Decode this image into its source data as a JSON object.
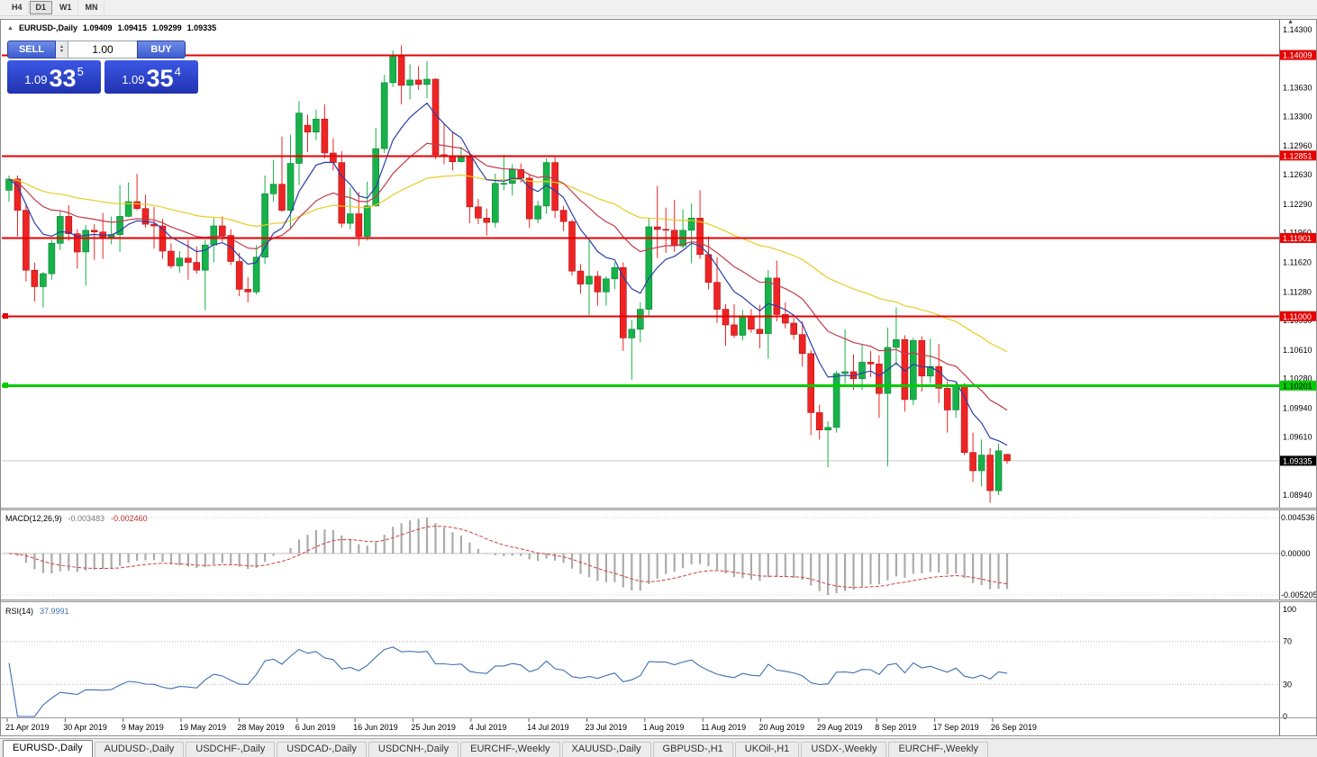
{
  "toolbar": {
    "timeframes": [
      {
        "label": "H4",
        "active": false
      },
      {
        "label": "D1",
        "active": true
      },
      {
        "label": "W1",
        "active": false
      },
      {
        "label": "MN",
        "active": false
      }
    ]
  },
  "chart_header": {
    "collapse_icon": "▲",
    "symbol": "EURUSD-,Daily",
    "open": "1.09409",
    "high": "1.09415",
    "low": "1.09299",
    "close": "1.09335"
  },
  "trade_panel": {
    "sell_label": "SELL",
    "buy_label": "BUY",
    "volume": "1.00",
    "sell_price": {
      "base": "1.09",
      "pips": "33",
      "pipette": "5"
    },
    "buy_price": {
      "base": "1.09",
      "pips": "35",
      "pipette": "4"
    }
  },
  "indicators": {
    "macd": {
      "label": "MACD(12,26,9)",
      "value_main": "-0.003483",
      "value_signal": "-0.002460",
      "axis_labels": [
        "0.004536",
        "0.00000",
        "-0.005205"
      ],
      "fast": 12,
      "slow": 26,
      "signal": 9,
      "histogram_color": "#ababab",
      "signal_color": "#d04040"
    },
    "rsi": {
      "label": "RSI(14)",
      "value": "37.9991",
      "axis_labels": [
        "100",
        "70",
        "30",
        "0"
      ],
      "levels": [
        70,
        30
      ],
      "period": 14,
      "line_color": "#3e6fb0"
    }
  },
  "price_axis": {
    "grid_labels": [
      "1.14300",
      "1.13630",
      "1.13300",
      "1.12960",
      "1.12630",
      "1.12290",
      "1.11960",
      "1.11620",
      "1.11280",
      "1.10950",
      "1.10610",
      "1.10280",
      "1.09940",
      "1.09610",
      "1.08940"
    ]
  },
  "hlines": [
    {
      "price": 1.14009,
      "label": "1.14009",
      "color": "#E60000",
      "width": 2,
      "text_color": "#ffffff",
      "handle": false
    },
    {
      "price": 1.12851,
      "label": "1.12851",
      "color": "#E60000",
      "width": 2,
      "text_color": "#ffffff",
      "handle": false
    },
    {
      "price": 1.11901,
      "label": "1.11901",
      "color": "#E60000",
      "width": 2,
      "text_color": "#ffffff",
      "handle": false
    },
    {
      "price": 1.11,
      "label": "1.11000",
      "color": "#E60000",
      "width": 2,
      "text_color": "#ffffff",
      "handle": true
    },
    {
      "price": 1.10201,
      "label": "1.10201",
      "color": "#00CC00",
      "width": 3,
      "text_color": "#000000",
      "handle": true
    }
  ],
  "bid": {
    "price": 1.09335,
    "label": "1.09335",
    "color": "#000000",
    "text_color": "#ffffff"
  },
  "chart_data": {
    "type": "candlestick",
    "symbol": "EURUSD-",
    "timeframe": "Daily",
    "title": "EURUSD-,Daily",
    "ylim": [
      1.0894,
      1.143
    ],
    "x_labels": [
      "21 Apr 2019",
      "30 Apr 2019",
      "9 May 2019",
      "19 May 2019",
      "28 May 2019",
      "6 Jun 2019",
      "16 Jun 2019",
      "25 Jun 2019",
      "4 Jul 2019",
      "14 Jul 2019",
      "23 Jul 2019",
      "1 Aug 2019",
      "11 Aug 2019",
      "20 Aug 2019",
      "29 Aug 2019",
      "8 Sep 2019",
      "17 Sep 2019",
      "26 Sep 2019"
    ],
    "colors": {
      "bull": "#17b24a",
      "bear": "#ee2424",
      "bull_border": "#0b8134",
      "bear_border": "#b31212"
    },
    "moving_averages": [
      {
        "period": 50,
        "method": "ema",
        "color": "#e8cc22"
      },
      {
        "period": 20,
        "method": "ema",
        "color": "#c23b4b"
      },
      {
        "period": 8,
        "method": "ema",
        "color": "#2a3fa8"
      }
    ],
    "ohlc": [
      [
        1.1245,
        1.1262,
        1.1232,
        1.1258
      ],
      [
        1.1258,
        1.1262,
        1.1192,
        1.1222
      ],
      [
        1.1222,
        1.123,
        1.114,
        1.1153
      ],
      [
        1.1153,
        1.1162,
        1.1117,
        1.1134
      ],
      [
        1.1134,
        1.1151,
        1.111,
        1.1149
      ],
      [
        1.1149,
        1.1188,
        1.1142,
        1.1184
      ],
      [
        1.1184,
        1.1221,
        1.1176,
        1.1215
      ],
      [
        1.1215,
        1.1228,
        1.1187,
        1.1195
      ],
      [
        1.1195,
        1.12,
        1.1155,
        1.1174
      ],
      [
        1.1174,
        1.1205,
        1.1135,
        1.1199
      ],
      [
        1.1199,
        1.1206,
        1.1165,
        1.1197
      ],
      [
        1.1197,
        1.1219,
        1.1166,
        1.1191
      ],
      [
        1.1191,
        1.1215,
        1.1183,
        1.1194
      ],
      [
        1.1194,
        1.1251,
        1.1174,
        1.1215
      ],
      [
        1.1215,
        1.1254,
        1.1214,
        1.1232
      ],
      [
        1.1232,
        1.1264,
        1.1222,
        1.1224
      ],
      [
        1.1224,
        1.124,
        1.1202,
        1.1206
      ],
      [
        1.1206,
        1.1226,
        1.1178,
        1.1204
      ],
      [
        1.1204,
        1.1212,
        1.1166,
        1.1175
      ],
      [
        1.1175,
        1.1184,
        1.1155,
        1.1158
      ],
      [
        1.1158,
        1.1175,
        1.115,
        1.1167
      ],
      [
        1.1167,
        1.1188,
        1.1142,
        1.1162
      ],
      [
        1.1162,
        1.118,
        1.1149,
        1.1153
      ],
      [
        1.1153,
        1.1188,
        1.1107,
        1.1182
      ],
      [
        1.1182,
        1.1213,
        1.1162,
        1.1204
      ],
      [
        1.1204,
        1.1215,
        1.1186,
        1.1193
      ],
      [
        1.1193,
        1.12,
        1.1159,
        1.1163
      ],
      [
        1.1163,
        1.1173,
        1.1123,
        1.1131
      ],
      [
        1.1131,
        1.1145,
        1.1116,
        1.1128
      ],
      [
        1.1128,
        1.1182,
        1.1125,
        1.1168
      ],
      [
        1.1168,
        1.1262,
        1.116,
        1.1241
      ],
      [
        1.1241,
        1.128,
        1.1232,
        1.1252
      ],
      [
        1.1252,
        1.1307,
        1.122,
        1.1222
      ],
      [
        1.1222,
        1.1309,
        1.1201,
        1.1276
      ],
      [
        1.1276,
        1.1348,
        1.1251,
        1.1334
      ],
      [
        1.132,
        1.1332,
        1.1289,
        1.1312
      ],
      [
        1.1312,
        1.1338,
        1.1303,
        1.1327
      ],
      [
        1.1327,
        1.1344,
        1.1282,
        1.1288
      ],
      [
        1.1288,
        1.1305,
        1.1268,
        1.1277
      ],
      [
        1.1277,
        1.129,
        1.1202,
        1.1207
      ],
      [
        1.1207,
        1.1248,
        1.12,
        1.1218
      ],
      [
        1.1218,
        1.1243,
        1.1181,
        1.1192
      ],
      [
        1.1192,
        1.1255,
        1.1187,
        1.1227
      ],
      [
        1.1227,
        1.1317,
        1.1226,
        1.1293
      ],
      [
        1.1293,
        1.1378,
        1.1288,
        1.1369
      ],
      [
        1.1369,
        1.1406,
        1.1364,
        1.1399
      ],
      [
        1.1399,
        1.1412,
        1.1344,
        1.1366
      ],
      [
        1.1366,
        1.139,
        1.135,
        1.1372
      ],
      [
        1.1372,
        1.1388,
        1.1361,
        1.1367
      ],
      [
        1.1367,
        1.1394,
        1.1351,
        1.1373
      ],
      [
        1.1373,
        1.1374,
        1.1281,
        1.1286
      ],
      [
        1.1286,
        1.1322,
        1.1275,
        1.1285
      ],
      [
        1.1285,
        1.1312,
        1.1268,
        1.1278
      ],
      [
        1.1278,
        1.1295,
        1.1277,
        1.1283
      ],
      [
        1.1283,
        1.1288,
        1.1207,
        1.1226
      ],
      [
        1.1226,
        1.1235,
        1.1206,
        1.1213
      ],
      [
        1.1213,
        1.1224,
        1.1193,
        1.1208
      ],
      [
        1.1208,
        1.1264,
        1.1202,
        1.1253
      ],
      [
        1.1253,
        1.1286,
        1.1245,
        1.1253
      ],
      [
        1.1253,
        1.1275,
        1.1239,
        1.1269
      ],
      [
        1.1269,
        1.1276,
        1.1254,
        1.1259
      ],
      [
        1.1259,
        1.1263,
        1.1202,
        1.1212
      ],
      [
        1.1212,
        1.1233,
        1.1207,
        1.1227
      ],
      [
        1.1227,
        1.1282,
        1.1218,
        1.1277
      ],
      [
        1.1277,
        1.1283,
        1.1213,
        1.1222
      ],
      [
        1.1222,
        1.1227,
        1.1198,
        1.1209
      ],
      [
        1.1209,
        1.1211,
        1.1147,
        1.1152
      ],
      [
        1.1152,
        1.116,
        1.1126,
        1.1137
      ],
      [
        1.1137,
        1.1187,
        1.1101,
        1.1146
      ],
      [
        1.1146,
        1.1152,
        1.1112,
        1.1128
      ],
      [
        1.1128,
        1.1146,
        1.1112,
        1.1143
      ],
      [
        1.1143,
        1.1162,
        1.1131,
        1.1156
      ],
      [
        1.1156,
        1.1162,
        1.106,
        1.1075
      ],
      [
        1.1075,
        1.1096,
        1.1027,
        1.1085
      ],
      [
        1.1085,
        1.1116,
        1.107,
        1.1108
      ],
      [
        1.1108,
        1.1213,
        1.1101,
        1.1203
      ],
      [
        1.1203,
        1.125,
        1.1167,
        1.12
      ],
      [
        1.12,
        1.1225,
        1.1173,
        1.1199
      ],
      [
        1.1199,
        1.1234,
        1.1174,
        1.1181
      ],
      [
        1.1181,
        1.1223,
        1.1178,
        1.1199
      ],
      [
        1.1199,
        1.123,
        1.1161,
        1.1213
      ],
      [
        1.1213,
        1.1245,
        1.1166,
        1.1171
      ],
      [
        1.1171,
        1.1192,
        1.1131,
        1.1139
      ],
      [
        1.1139,
        1.1168,
        1.1092,
        1.1108
      ],
      [
        1.1108,
        1.1114,
        1.1066,
        1.109
      ],
      [
        1.109,
        1.1114,
        1.1075,
        1.1078
      ],
      [
        1.1078,
        1.1107,
        1.1072,
        1.11
      ],
      [
        1.11,
        1.1108,
        1.1081,
        1.1085
      ],
      [
        1.1085,
        1.1113,
        1.1063,
        1.108
      ],
      [
        1.108,
        1.1153,
        1.1051,
        1.1144
      ],
      [
        1.1144,
        1.1164,
        1.1094,
        1.1102
      ],
      [
        1.1102,
        1.1116,
        1.1086,
        1.1092
      ],
      [
        1.1092,
        1.1098,
        1.1073,
        1.1079
      ],
      [
        1.1079,
        1.1094,
        1.1042,
        1.1057
      ],
      [
        1.1057,
        1.1061,
        1.0963,
        1.0989
      ],
      [
        1.0989,
        1.0998,
        1.0958,
        1.0969
      ],
      [
        1.0969,
        1.0979,
        1.0926,
        1.0972
      ],
      [
        1.0972,
        1.1037,
        1.0966,
        1.1034
      ],
      [
        1.1034,
        1.1085,
        1.1022,
        1.1036
      ],
      [
        1.1036,
        1.1056,
        1.1015,
        1.1028
      ],
      [
        1.1028,
        1.1067,
        1.1015,
        1.1047
      ],
      [
        1.1047,
        1.106,
        1.103,
        1.1045
      ],
      [
        1.1045,
        1.1055,
        1.0983,
        1.1011
      ],
      [
        1.1011,
        1.1087,
        1.0927,
        1.1064
      ],
      [
        1.1064,
        1.111,
        1.1043,
        1.1073
      ],
      [
        1.1073,
        1.1078,
        1.099,
        1.1004
      ],
      [
        1.1004,
        1.1075,
        1.0998,
        1.1072
      ],
      [
        1.1072,
        1.1077,
        1.1013,
        1.1031
      ],
      [
        1.1031,
        1.1074,
        1.1023,
        1.1042
      ],
      [
        1.1042,
        1.1068,
        1.1,
        1.1017
      ],
      [
        1.1017,
        1.1025,
        1.0966,
        1.0992
      ],
      [
        1.0992,
        1.1024,
        1.0983,
        1.1019
      ],
      [
        1.1019,
        1.1023,
        1.094,
        1.0943
      ],
      [
        1.0943,
        1.0966,
        1.0909,
        1.0922
      ],
      [
        1.0922,
        1.0958,
        1.0904,
        1.094
      ],
      [
        1.094,
        1.0948,
        1.0885,
        1.0899
      ],
      [
        1.0899,
        1.0953,
        1.0894,
        1.0945
      ],
      [
        1.09409,
        1.09415,
        1.09299,
        1.09335
      ]
    ]
  },
  "tabs": [
    {
      "label": "EURUSD-,Daily",
      "active": true
    },
    {
      "label": "AUDUSD-,Daily",
      "active": false
    },
    {
      "label": "USDCHF-,Daily",
      "active": false
    },
    {
      "label": "USDCAD-,Daily",
      "active": false
    },
    {
      "label": "USDCNH-,Daily",
      "active": false
    },
    {
      "label": "EURCHF-,Weekly",
      "active": false
    },
    {
      "label": "XAUUSD-,Daily",
      "active": false
    },
    {
      "label": "GBPUSD-,H1",
      "active": false
    },
    {
      "label": "UKOil-,H1",
      "active": false
    },
    {
      "label": "USDX-,Weekly",
      "active": false
    },
    {
      "label": "EURCHF-,Weekly",
      "active": false
    }
  ]
}
